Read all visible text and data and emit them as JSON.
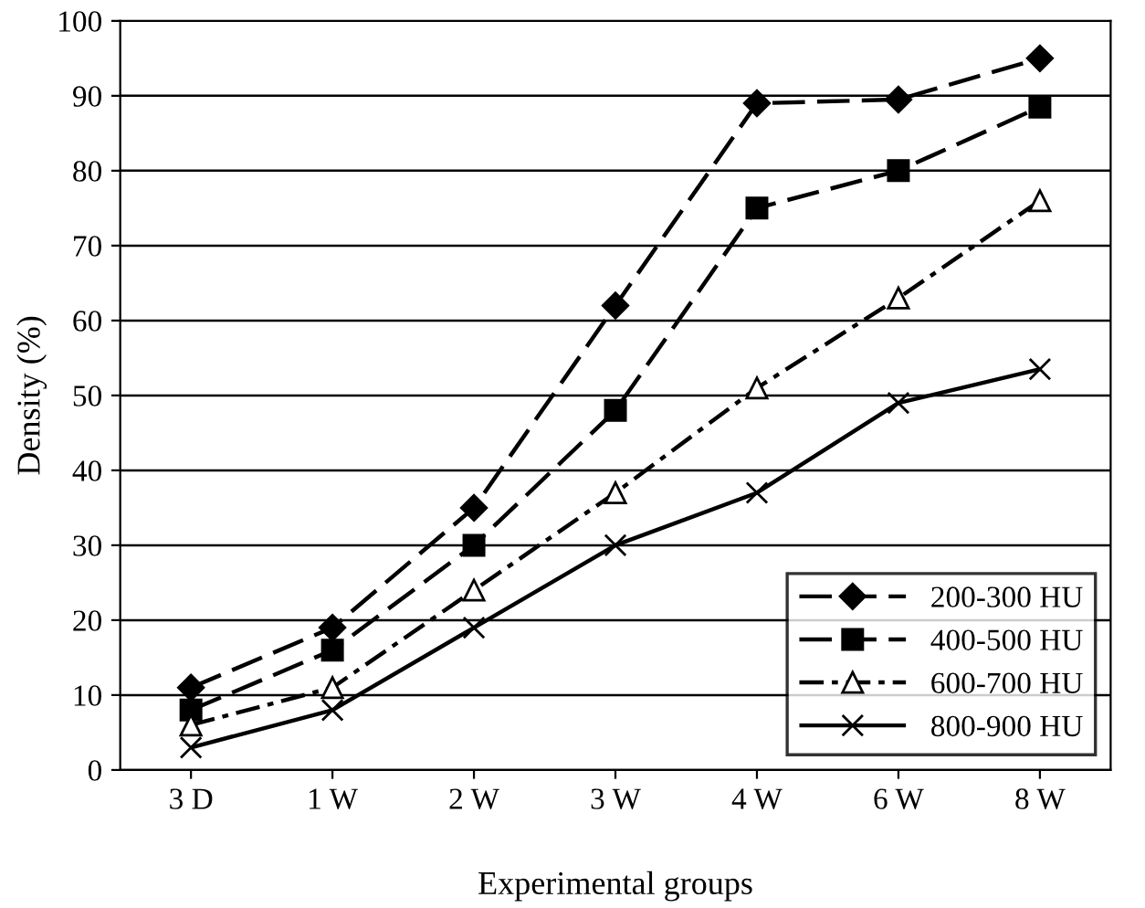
{
  "chart_data": {
    "type": "line",
    "xlabel": "Experimental groups",
    "ylabel": "Density (%)",
    "categories": [
      "3 D",
      "1 W",
      "2 W",
      "3 W",
      "4 W",
      "6 W",
      "8 W"
    ],
    "series": [
      {
        "name": "200-300 HU",
        "color": "#000000",
        "marker": "diamond",
        "line_style": "dashed",
        "values": [
          11,
          19,
          35,
          62,
          89,
          89.5,
          95
        ]
      },
      {
        "name": "400-500 HU",
        "color": "#000000",
        "marker": "square",
        "line_style": "dashed",
        "values": [
          8,
          16,
          30,
          48,
          75,
          80,
          88.5
        ]
      },
      {
        "name": "600-700 HU",
        "color": "#000000",
        "marker": "triangle",
        "line_style": "dotted",
        "values": [
          6,
          11,
          24,
          37,
          51,
          63,
          76
        ]
      },
      {
        "name": "800-900 HU",
        "color": "#000000",
        "marker": "cross",
        "line_style": "solid",
        "values": [
          3,
          8,
          19,
          30,
          37,
          49,
          53.5
        ]
      }
    ],
    "ylim": [
      0,
      100
    ],
    "yticks": [
      0,
      10,
      20,
      30,
      40,
      50,
      60,
      70,
      80,
      90,
      100
    ],
    "grid": "y",
    "legend": "bottom right"
  }
}
